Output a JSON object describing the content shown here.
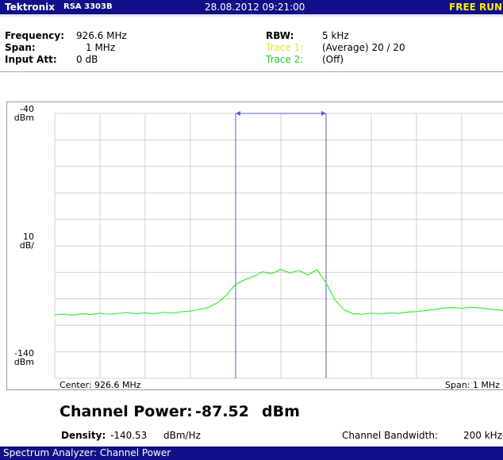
{
  "header": {
    "brand": "Tektronix",
    "model": "RSA 3303B",
    "datetime": "28.08.2012 09:21:00",
    "status": "FREE RUN"
  },
  "info": {
    "frequency_label": "Frequency:",
    "frequency": "926.6 MHz",
    "span_label": "Span:",
    "span": "1 MHz",
    "att_label": "Input Att:",
    "att": "0 dB",
    "rbw_label": "RBW:",
    "rbw": "5 kHz",
    "trace1_label": "Trace 1:",
    "trace1": "(Average)  20 / 20",
    "trace2_label": "Trace 2:",
    "trace2": "(Off)"
  },
  "chart_data": {
    "type": "line",
    "scale_labels": {
      "top": [
        "-40",
        "dBm"
      ],
      "middle": [
        "10",
        "dB/"
      ],
      "bottom": [
        "-140",
        "dBm"
      ]
    },
    "center_label": "Center: 926.6 MHz",
    "span_label": "Span: 1 MHz",
    "xlim": [
      926.1,
      927.1
    ],
    "ylim": [
      -140,
      -40
    ],
    "xticks": [
      926.1,
      926.2,
      926.3,
      926.4,
      926.5,
      926.6,
      926.7,
      926.8,
      926.9,
      927.0,
      927.1
    ],
    "yticks": [
      -140,
      -130,
      -120,
      -110,
      -100,
      -90,
      -80,
      -70,
      -60,
      -50,
      -40
    ],
    "grid": true,
    "channel": [
      926.5,
      926.7
    ],
    "channel_color": "#5a5ad6",
    "series": [
      {
        "color": "#33ee33",
        "x": [
          926.1,
          926.12,
          926.14,
          926.16,
          926.18,
          926.2,
          926.22,
          926.24,
          926.26,
          926.28,
          926.3,
          926.32,
          926.34,
          926.36,
          926.38,
          926.4,
          926.42,
          926.44,
          926.46,
          926.48,
          926.5,
          926.52,
          926.54,
          926.56,
          926.58,
          926.6,
          926.62,
          926.64,
          926.66,
          926.68,
          926.7,
          926.72,
          926.74,
          926.76,
          926.78,
          926.8,
          926.82,
          926.84,
          926.86,
          926.88,
          926.9,
          926.92,
          926.94,
          926.96,
          926.98,
          927.0,
          927.02,
          927.04,
          927.06,
          927.08,
          927.1
        ],
        "values": [
          -116,
          -115.8,
          -116.2,
          -115.6,
          -115.9,
          -115.4,
          -115.8,
          -115.5,
          -115.2,
          -115.6,
          -115.3,
          -115.7,
          -115.1,
          -115.4,
          -114.9,
          -114.6,
          -114.0,
          -113.2,
          -111.5,
          -108.5,
          -104.5,
          -102.8,
          -101.5,
          -99.8,
          -100.5,
          -98.9,
          -100.2,
          -99.3,
          -101.0,
          -99.0,
          -104.0,
          -110.5,
          -114.2,
          -115.6,
          -115.8,
          -115.4,
          -115.7,
          -115.3,
          -115.5,
          -115.0,
          -114.8,
          -114.4,
          -114.0,
          -113.5,
          -113.2,
          -113.6,
          -113.1,
          -113.4,
          -113.8,
          -114.2,
          -114.5
        ]
      }
    ]
  },
  "result": {
    "label": "Channel Power:",
    "value": "-87.52",
    "unit": "dBm",
    "density_label": "Density:",
    "density": "-140.53",
    "density_unit": "dBm/Hz",
    "bw_label": "Channel Bandwidth:",
    "bw": "200 kHz"
  },
  "footer": "Spectrum Analyzer: Channel Power"
}
